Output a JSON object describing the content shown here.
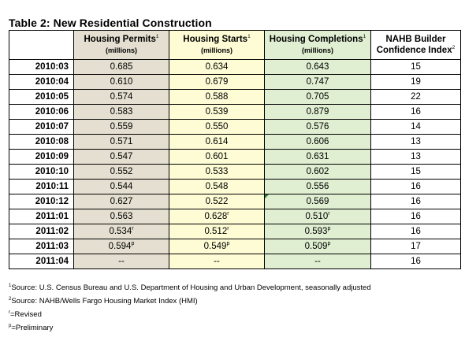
{
  "title": "Table 2: New Residential Construction",
  "headers": {
    "permits": {
      "label": "Housing Permits",
      "note": "1",
      "unit": "(millions)"
    },
    "starts": {
      "label": "Housing Starts",
      "note": "1",
      "unit": "(millions)"
    },
    "completions": {
      "label": "Housing Completions",
      "note": "1",
      "unit": "(millions)"
    },
    "nahb": {
      "label": "NAHB Builder",
      "label2": "Confidence Index",
      "note": "2"
    }
  },
  "rows": [
    {
      "date": "2010:03",
      "permits": "0.685",
      "permits_mark": "",
      "starts": "0.634",
      "starts_mark": "",
      "completions": "0.643",
      "completions_mark": "",
      "nahb": "15"
    },
    {
      "date": "2010:04",
      "permits": "0.610",
      "permits_mark": "",
      "starts": "0.679",
      "starts_mark": "",
      "completions": "0.747",
      "completions_mark": "",
      "nahb": "19"
    },
    {
      "date": "2010:05",
      "permits": "0.574",
      "permits_mark": "",
      "starts": "0.588",
      "starts_mark": "",
      "completions": "0.705",
      "completions_mark": "",
      "nahb": "22"
    },
    {
      "date": "2010:06",
      "permits": "0.583",
      "permits_mark": "",
      "starts": "0.539",
      "starts_mark": "",
      "completions": "0.879",
      "completions_mark": "",
      "nahb": "16"
    },
    {
      "date": "2010:07",
      "permits": "0.559",
      "permits_mark": "",
      "starts": "0.550",
      "starts_mark": "",
      "completions": "0.576",
      "completions_mark": "",
      "nahb": "14"
    },
    {
      "date": "2010:08",
      "permits": "0.571",
      "permits_mark": "",
      "starts": "0.614",
      "starts_mark": "",
      "completions": "0.606",
      "completions_mark": "",
      "nahb": "13"
    },
    {
      "date": "2010:09",
      "permits": "0.547",
      "permits_mark": "",
      "starts": "0.601",
      "starts_mark": "",
      "completions": "0.631",
      "completions_mark": "",
      "nahb": "13"
    },
    {
      "date": "2010:10",
      "permits": "0.552",
      "permits_mark": "",
      "starts": "0.533",
      "starts_mark": "",
      "completions": "0.602",
      "completions_mark": "",
      "nahb": "15"
    },
    {
      "date": "2010:11",
      "permits": "0.544",
      "permits_mark": "",
      "starts": "0.548",
      "starts_mark": "",
      "completions": "0.556",
      "completions_mark": "",
      "nahb": "16"
    },
    {
      "date": "2010:12",
      "permits": "0.627",
      "permits_mark": "",
      "starts": "0.522",
      "starts_mark": "",
      "completions": "0.569",
      "completions_mark": "",
      "nahb": "16"
    },
    {
      "date": "2011:01",
      "permits": "0.563",
      "permits_mark": "",
      "starts": "0.628",
      "starts_mark": "r",
      "completions": "0.510",
      "completions_mark": "r",
      "nahb": "16"
    },
    {
      "date": "2011:02",
      "permits": "0.534",
      "permits_mark": "r",
      "starts": "0.512",
      "starts_mark": "r",
      "completions": "0.593",
      "completions_mark": "p",
      "nahb": "16"
    },
    {
      "date": "2011:03",
      "permits": "0.594",
      "permits_mark": "p",
      "starts": "0.549",
      "starts_mark": "p",
      "completions": "0.509",
      "completions_mark": "p",
      "nahb": "17"
    },
    {
      "date": "2011:04",
      "permits": "--",
      "permits_mark": "",
      "starts": "--",
      "starts_mark": "",
      "completions": "--",
      "completions_mark": "",
      "nahb": "16"
    }
  ],
  "footnotes": [
    {
      "mark": "1",
      "text": "Source: U.S. Census Bureau and U.S. Department of Housing and Urban Development, seasonally adjusted"
    },
    {
      "mark": "2",
      "text": "Source: NAHB/Wells Fargo Housing Market Index (HMI)"
    },
    {
      "mark": "r",
      "text": "=Revised"
    },
    {
      "mark": "p",
      "text": "=Preliminary"
    }
  ],
  "colors": {
    "permits": "#e4dfd0",
    "starts": "#fdfcd5",
    "completions": "#e0efd2",
    "comment_marker": "#2e7d32"
  }
}
